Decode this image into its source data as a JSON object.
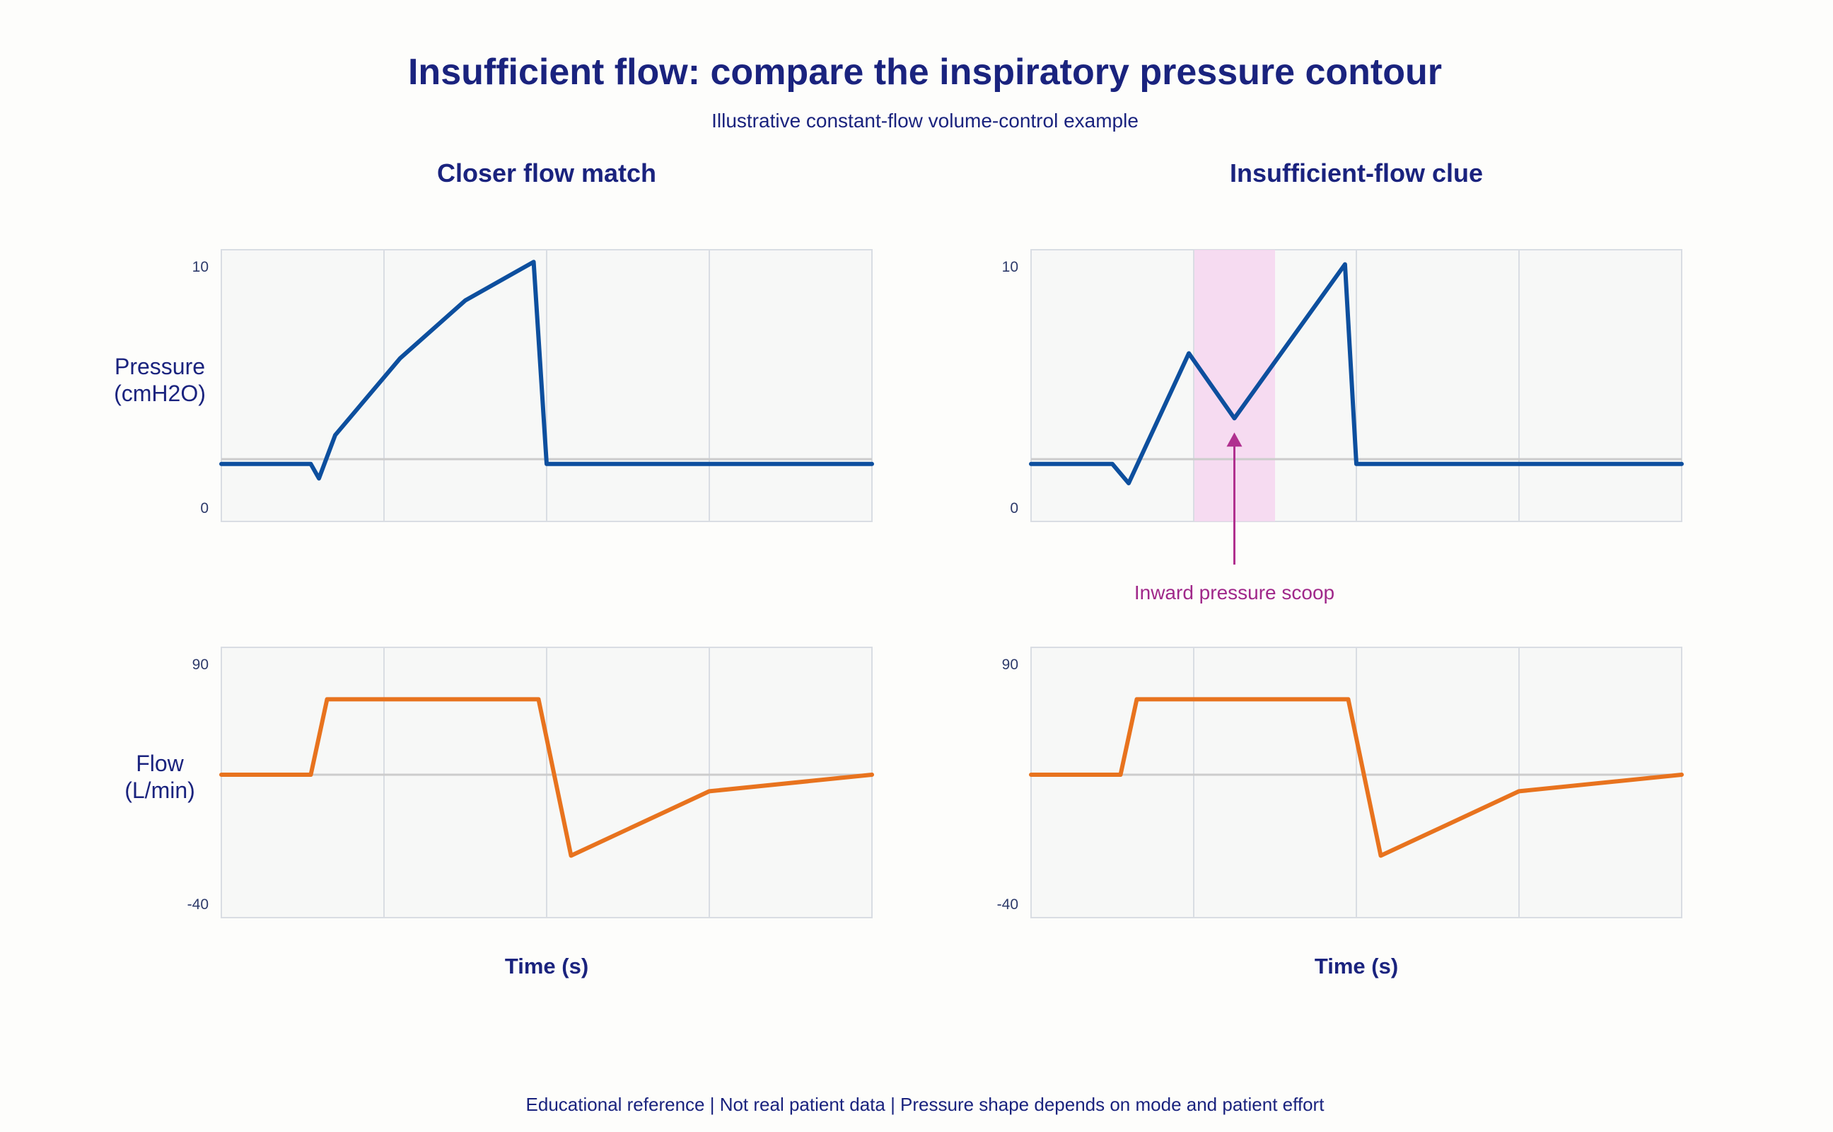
{
  "title": "Insufficient flow: compare the inspiratory pressure contour",
  "subtitle": "Illustrative constant-flow volume-control example",
  "footer": "Educational reference | Not real patient data | Pressure shape depends on mode and patient effort",
  "colors": {
    "pressure": "#0d4f9e",
    "flow": "#e8731e",
    "baseline": "#cccccc",
    "grid": "#d9dde3",
    "highlight": "#f6d2ef",
    "annotation": "#b0308f",
    "text": "#1a237e"
  },
  "chart_data": [
    {
      "type": "line",
      "panel_title": "Closer flow match",
      "ylabel": [
        "Pressure",
        "(cmH2O)"
      ],
      "xlabel": "",
      "yticks": [
        "10",
        "0"
      ],
      "ylim": [
        0,
        10
      ],
      "grid": true,
      "series": [
        {
          "key": "pressure",
          "values": [
            [
              0,
              1.8
            ],
            [
              0.55,
              1.8
            ],
            [
              0.6,
              1.2
            ],
            [
              0.7,
              3.0
            ],
            [
              1.1,
              6.2
            ],
            [
              1.5,
              8.6
            ],
            [
              1.92,
              10.2
            ],
            [
              2.0,
              1.8
            ],
            [
              4.0,
              1.8
            ]
          ]
        }
      ],
      "baseline": 2
    },
    {
      "type": "line",
      "panel_title": "",
      "ylabel": [
        "Flow",
        "(L/min)"
      ],
      "xlabel": "Time (s)",
      "yticks": [
        "90",
        "-40"
      ],
      "ylim": [
        -40,
        90
      ],
      "grid": true,
      "series": [
        {
          "key": "flow",
          "values": [
            [
              0,
              30
            ],
            [
              0.55,
              30
            ],
            [
              0.65,
              71
            ],
            [
              1.95,
              71
            ],
            [
              2.15,
              -14
            ],
            [
              3.0,
              21
            ],
            [
              4.0,
              30
            ]
          ]
        }
      ],
      "baseline": 30
    },
    {
      "type": "line",
      "panel_title": "Insufficient-flow clue",
      "ylabel": [
        "",
        ""
      ],
      "xlabel": "",
      "yticks": [
        "10",
        "0"
      ],
      "ylim": [
        0,
        10
      ],
      "grid": true,
      "series": [
        {
          "key": "pressure",
          "values": [
            [
              0,
              1.8
            ],
            [
              0.5,
              1.8
            ],
            [
              0.6,
              1.0
            ],
            [
              0.97,
              6.4
            ],
            [
              1.25,
              3.7
            ],
            [
              1.93,
              10.1
            ],
            [
              2.0,
              1.8
            ],
            [
              4.0,
              1.8
            ]
          ]
        }
      ],
      "baseline": 2,
      "highlight": {
        "x": [
          1.0,
          1.5
        ]
      },
      "annotation": {
        "text": "Inward pressure scoop",
        "x": 1.25,
        "y": 3.7
      }
    },
    {
      "type": "line",
      "panel_title": "",
      "ylabel": [
        "",
        ""
      ],
      "xlabel": "Time (s)",
      "yticks": [
        "90",
        "-40"
      ],
      "ylim": [
        -40,
        90
      ],
      "grid": true,
      "series": [
        {
          "key": "flow",
          "values": [
            [
              0,
              30
            ],
            [
              0.55,
              30
            ],
            [
              0.65,
              71
            ],
            [
              1.95,
              71
            ],
            [
              2.15,
              -14
            ],
            [
              3.0,
              21
            ],
            [
              4.0,
              30
            ]
          ]
        }
      ],
      "baseline": 30
    }
  ]
}
